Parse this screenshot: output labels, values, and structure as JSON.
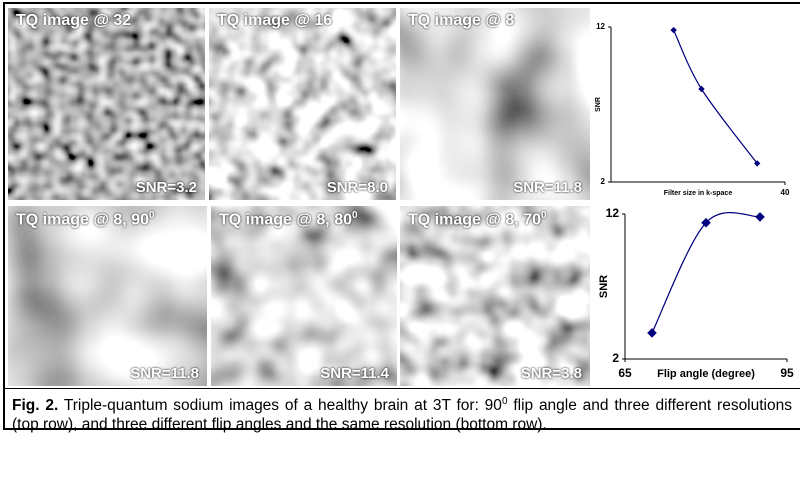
{
  "panels": [
    {
      "label": "TQ image @ 32",
      "snr": "SNR=3.2"
    },
    {
      "label": "TQ image @ 16",
      "snr": "SNR=8.0"
    },
    {
      "label": "TQ image @ 8",
      "snr": "SNR=11.8"
    },
    {
      "label": "TQ image @ 8, 90",
      "label_sup": "0",
      "snr": "SNR=11.8"
    },
    {
      "label": "TQ image @ 8, 80",
      "label_sup": "0",
      "snr": "SNR=11.4"
    },
    {
      "label": "TQ image @ 8, 70",
      "label_sup": "0",
      "snr": "SNR=3.8"
    }
  ],
  "chart_data": [
    {
      "type": "line",
      "y_label": "SNR",
      "x_label": "Filter size in k-space",
      "x": [
        8,
        16,
        32
      ],
      "values": [
        11.8,
        8.0,
        3.2
      ],
      "xlim": [
        -10,
        40
      ],
      "xticks": [
        40
      ],
      "ylim": [
        2,
        12
      ],
      "yticks": [
        2,
        12
      ],
      "color": "#00007f"
    },
    {
      "type": "line",
      "y_label": "SNR",
      "x_label": "Flip angle (degree)",
      "x": [
        70,
        80,
        90
      ],
      "values": [
        3.8,
        11.4,
        11.8
      ],
      "xlim": [
        65,
        95
      ],
      "xticks": [
        65,
        95
      ],
      "ylim": [
        2,
        12
      ],
      "yticks": [
        2,
        12
      ],
      "color": "#00007f"
    }
  ],
  "caption": {
    "label": "Fig. 2.",
    "text_1": " Triple-quantum sodium images of a healthy brain at 3T for: 90",
    "sup": "0",
    "text_2": " flip angle and three different resolutions (top row), and three different flip angles and the same resolution (bottom row)."
  }
}
